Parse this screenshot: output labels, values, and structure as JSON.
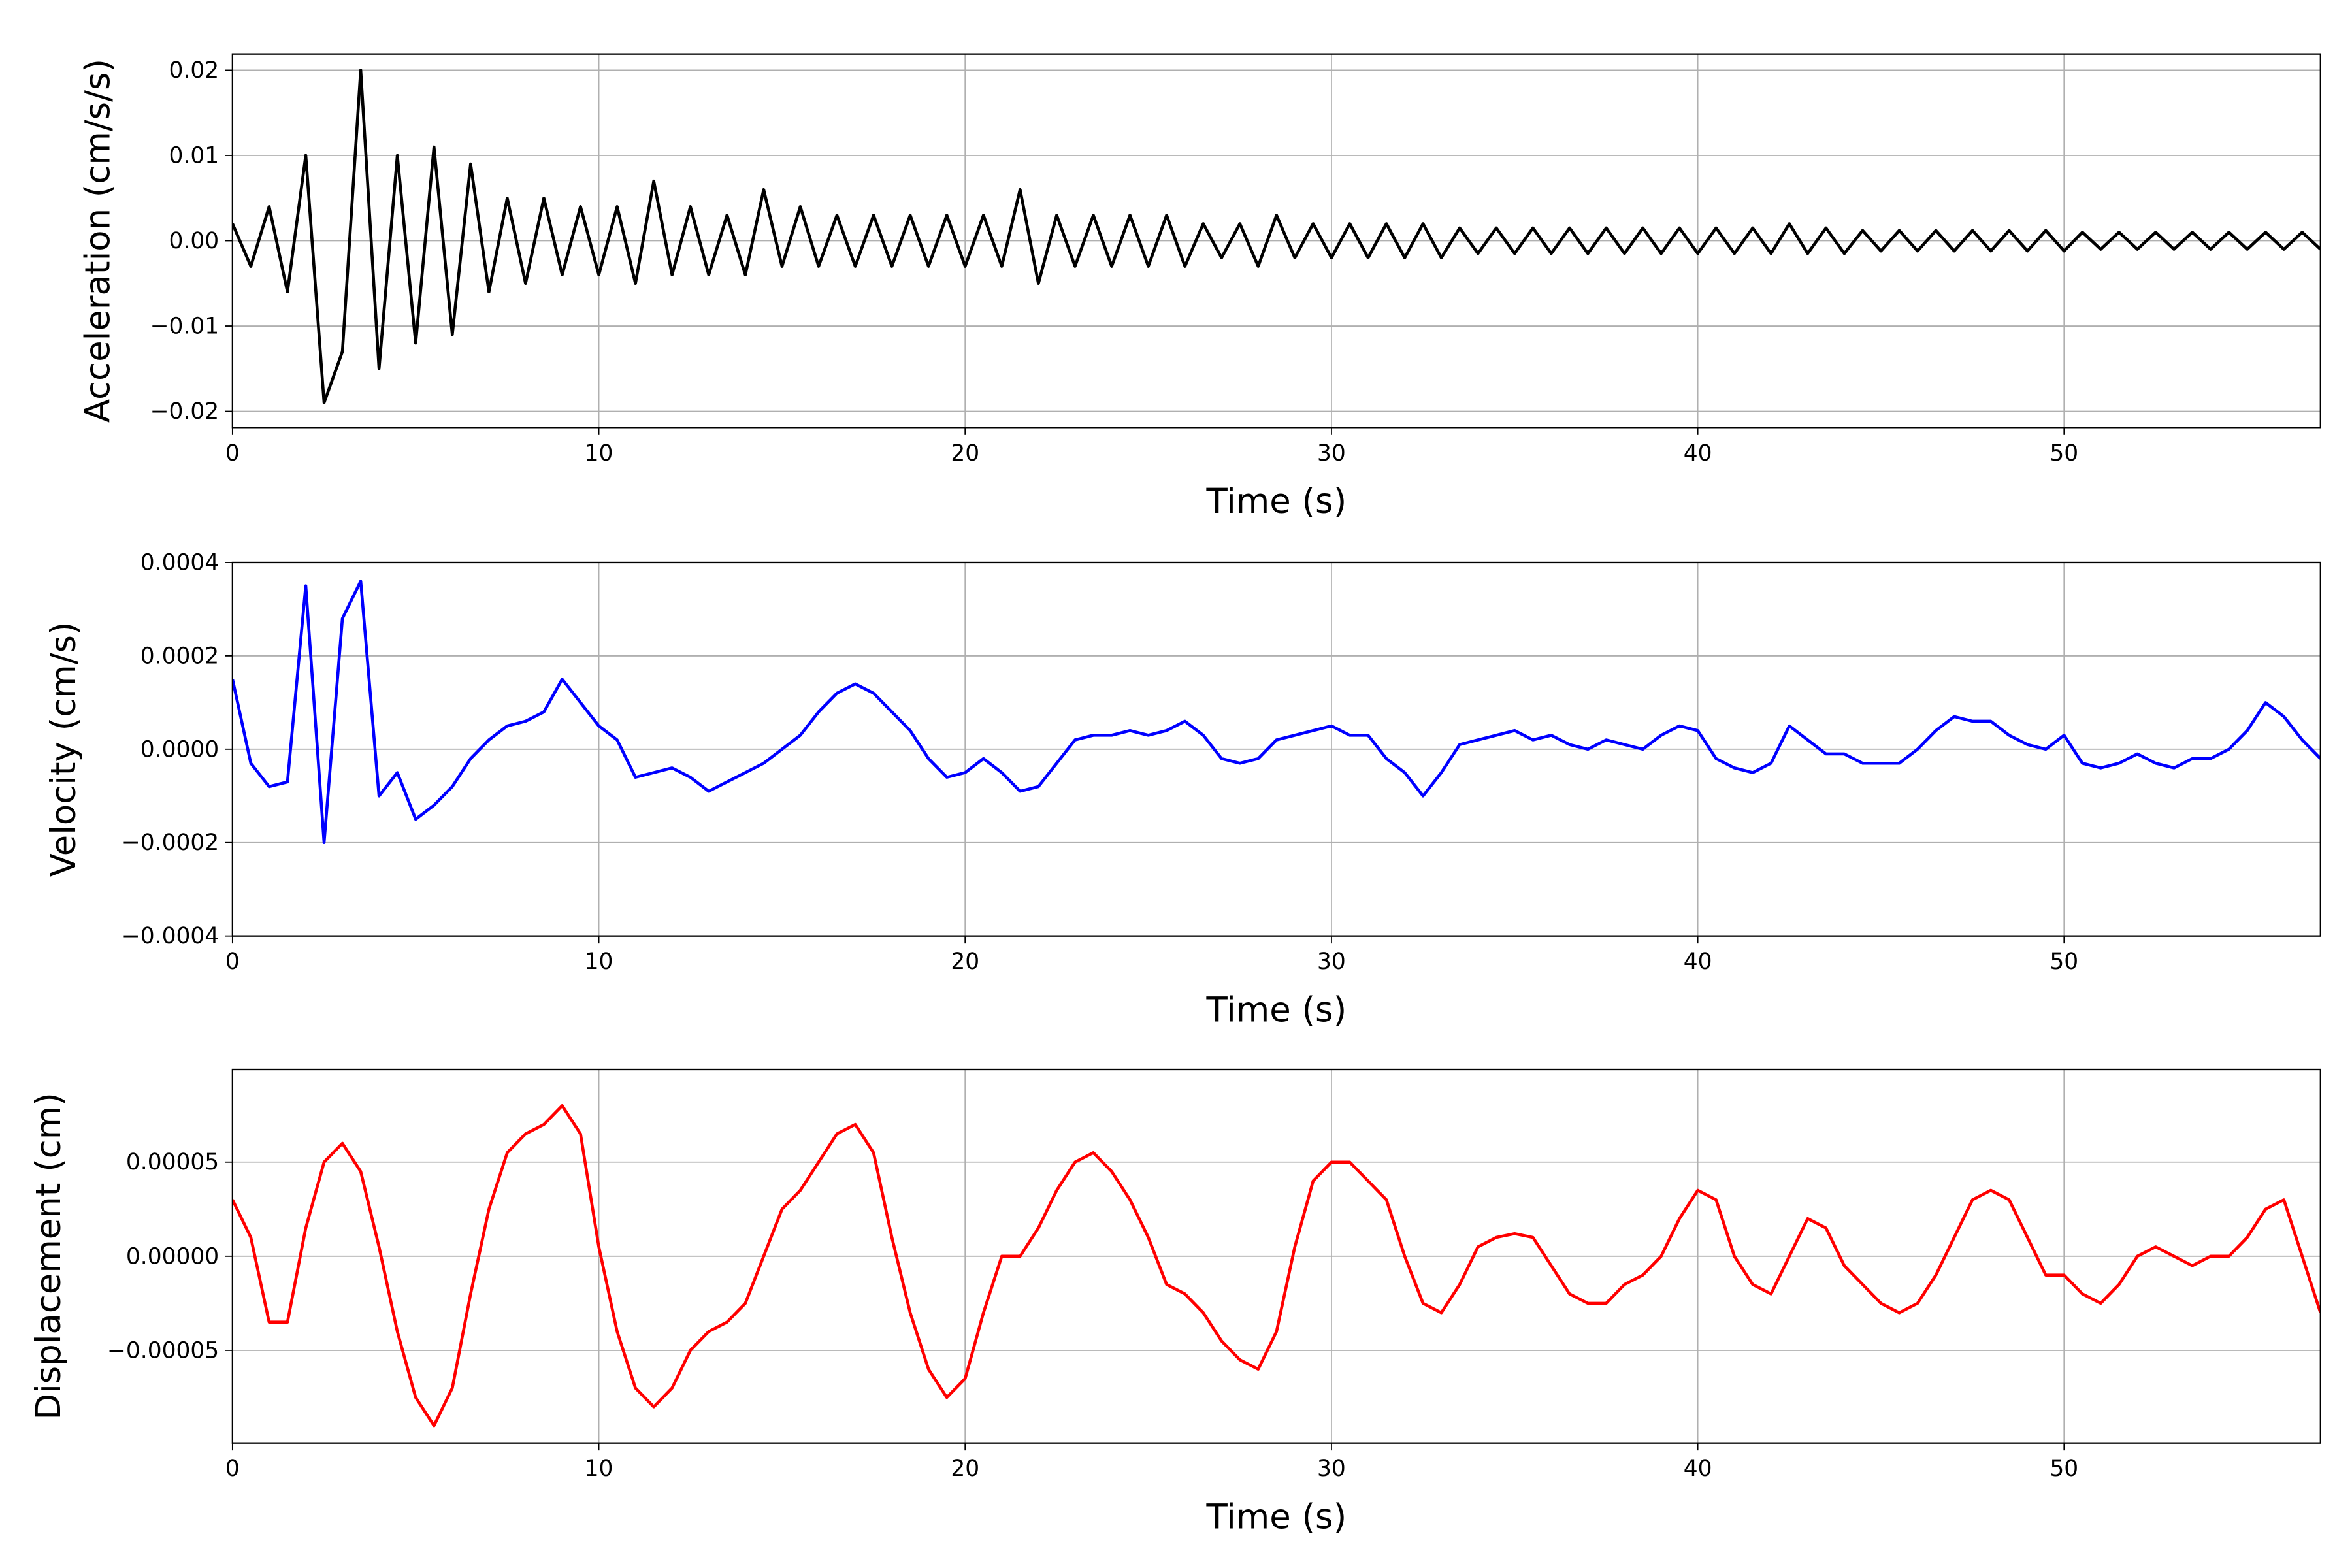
{
  "chart_data": [
    {
      "type": "line",
      "ylabel": "Acceleration (cm/s/s)",
      "xlabel": "Time (s)",
      "color": "#000000",
      "grid": true,
      "xlim": [
        0,
        57
      ],
      "xticks": [
        0,
        10,
        20,
        30,
        40,
        50
      ],
      "ylim": [
        -0.0219,
        0.0219
      ],
      "yticks": [
        {
          "value": -0.02,
          "label": "−0.02"
        },
        {
          "value": -0.01,
          "label": "−0.01"
        },
        {
          "value": 0,
          "label": "0.00"
        },
        {
          "value": 0.01,
          "label": "0.01"
        },
        {
          "value": 0.02,
          "label": "0.02"
        }
      ],
      "x": [
        0,
        0.5,
        1,
        1.5,
        2,
        2.5,
        3,
        3.5,
        4,
        4.5,
        5,
        5.5,
        6,
        6.5,
        7,
        7.5,
        8,
        8.5,
        9,
        9.5,
        10,
        10.5,
        11,
        11.5,
        12,
        12.5,
        13,
        13.5,
        14,
        14.5,
        15,
        15.5,
        16,
        16.5,
        17,
        17.5,
        18,
        18.5,
        19,
        19.5,
        20,
        20.5,
        21,
        21.5,
        22,
        22.5,
        23,
        23.5,
        24,
        24.5,
        25,
        25.5,
        26,
        26.5,
        27,
        27.5,
        28,
        28.5,
        29,
        29.5,
        30,
        30.5,
        31,
        31.5,
        32,
        32.5,
        33,
        33.5,
        34,
        34.5,
        35,
        35.5,
        36,
        36.5,
        37,
        37.5,
        38,
        38.5,
        39,
        39.5,
        40,
        40.5,
        41,
        41.5,
        42,
        42.5,
        43,
        43.5,
        44,
        44.5,
        45,
        45.5,
        46,
        46.5,
        47,
        47.5,
        48,
        48.5,
        49,
        49.5,
        50,
        50.5,
        51,
        51.5,
        52,
        52.5,
        53,
        53.5,
        54,
        54.5,
        55,
        55.5,
        56,
        56.5,
        57
      ],
      "values": [
        0.002,
        -0.003,
        0.004,
        -0.006,
        0.01,
        -0.019,
        -0.013,
        0.02,
        -0.015,
        0.01,
        -0.012,
        0.011,
        -0.011,
        0.009,
        -0.006,
        0.005,
        -0.005,
        0.005,
        -0.004,
        0.004,
        -0.004,
        0.004,
        -0.005,
        0.007,
        -0.004,
        0.004,
        -0.004,
        0.003,
        -0.004,
        0.006,
        -0.003,
        0.004,
        -0.003,
        0.003,
        -0.003,
        0.003,
        -0.003,
        0.003,
        -0.003,
        0.003,
        -0.003,
        0.003,
        -0.003,
        0.006,
        -0.005,
        0.003,
        -0.003,
        0.003,
        -0.003,
        0.003,
        -0.003,
        0.003,
        -0.003,
        0.002,
        -0.002,
        0.002,
        -0.003,
        0.003,
        -0.002,
        0.002,
        -0.002,
        0.002,
        -0.002,
        0.002,
        -0.002,
        0.002,
        -0.002,
        0.0015,
        -0.0015,
        0.0015,
        -0.0015,
        0.0015,
        -0.0015,
        0.0015,
        -0.0015,
        0.0015,
        -0.0015,
        0.0015,
        -0.0015,
        0.0015,
        -0.0015,
        0.0015,
        -0.0015,
        0.0015,
        -0.0015,
        0.002,
        -0.0015,
        0.0015,
        -0.0015,
        0.0012,
        -0.0012,
        0.0012,
        -0.0012,
        0.0012,
        -0.0012,
        0.0012,
        -0.0012,
        0.0012,
        -0.0012,
        0.0012,
        -0.0012,
        0.001,
        -0.001,
        0.001,
        -0.001,
        0.001,
        -0.001,
        0.001,
        -0.001,
        0.001,
        -0.001,
        0.001,
        -0.001,
        0.001,
        -0.001
      ]
    },
    {
      "type": "line",
      "ylabel": "Velocity (cm/s)",
      "xlabel": "Time (s)",
      "color": "#0000ff",
      "grid": true,
      "xlim": [
        0,
        57
      ],
      "xticks": [
        0,
        10,
        20,
        30,
        40,
        50
      ],
      "ylim": [
        -0.0004,
        0.0004
      ],
      "yticks": [
        {
          "value": -0.0004,
          "label": "−0.0004"
        },
        {
          "value": -0.0002,
          "label": "−0.0002"
        },
        {
          "value": 0,
          "label": "0.0000"
        },
        {
          "value": 0.0002,
          "label": "0.0002"
        },
        {
          "value": 0.0004,
          "label": "0.0004"
        }
      ],
      "x": [
        0,
        0.5,
        1,
        1.5,
        2,
        2.5,
        3,
        3.5,
        4,
        4.5,
        5,
        5.5,
        6,
        6.5,
        7,
        7.5,
        8,
        8.5,
        9,
        9.5,
        10,
        10.5,
        11,
        11.5,
        12,
        12.5,
        13,
        13.5,
        14,
        14.5,
        15,
        15.5,
        16,
        16.5,
        17,
        17.5,
        18,
        18.5,
        19,
        19.5,
        20,
        20.5,
        21,
        21.5,
        22,
        22.5,
        23,
        23.5,
        24,
        24.5,
        25,
        25.5,
        26,
        26.5,
        27,
        27.5,
        28,
        28.5,
        29,
        29.5,
        30,
        30.5,
        31,
        31.5,
        32,
        32.5,
        33,
        33.5,
        34,
        34.5,
        35,
        35.5,
        36,
        36.5,
        37,
        37.5,
        38,
        38.5,
        39,
        39.5,
        40,
        40.5,
        41,
        41.5,
        42,
        42.5,
        43,
        43.5,
        44,
        44.5,
        45,
        45.5,
        46,
        46.5,
        47,
        47.5,
        48,
        48.5,
        49,
        49.5,
        50,
        50.5,
        51,
        51.5,
        52,
        52.5,
        53,
        53.5,
        54,
        54.5,
        55,
        55.5,
        56,
        56.5,
        57
      ],
      "values": [
        0.00015,
        -3e-05,
        -8e-05,
        -7e-05,
        0.00035,
        -0.0002,
        0.00028,
        0.00036,
        -0.0001,
        -5e-05,
        -0.00015,
        -0.00012,
        -8e-05,
        -2e-05,
        2e-05,
        5e-05,
        6e-05,
        8e-05,
        0.00015,
        0.0001,
        5e-05,
        2e-05,
        -6e-05,
        -5e-05,
        -4e-05,
        -6e-05,
        -9e-05,
        -7e-05,
        -5e-05,
        -3e-05,
        0,
        3e-05,
        8e-05,
        0.00012,
        0.00014,
        0.00012,
        8e-05,
        4e-05,
        -2e-05,
        -6e-05,
        -5e-05,
        -2e-05,
        -5e-05,
        -9e-05,
        -8e-05,
        -3e-05,
        2e-05,
        3e-05,
        3e-05,
        4e-05,
        3e-05,
        4e-05,
        6e-05,
        3e-05,
        -2e-05,
        -3e-05,
        -2e-05,
        2e-05,
        3e-05,
        4e-05,
        5e-05,
        3e-05,
        3e-05,
        -2e-05,
        -5e-05,
        -0.0001,
        -5e-05,
        1e-05,
        2e-05,
        3e-05,
        4e-05,
        2e-05,
        3e-05,
        1e-05,
        0,
        2e-05,
        1e-05,
        0,
        3e-05,
        5e-05,
        4e-05,
        -2e-05,
        -4e-05,
        -5e-05,
        -3e-05,
        5e-05,
        2e-05,
        -1e-05,
        -1e-05,
        -3e-05,
        -3e-05,
        -3e-05,
        0,
        4e-05,
        7e-05,
        6e-05,
        6e-05,
        3e-05,
        1e-05,
        0,
        3e-05,
        -3e-05,
        -4e-05,
        -3e-05,
        -1e-05,
        -3e-05,
        -4e-05,
        -2e-05,
        -2e-05,
        0,
        4e-05,
        0.0001,
        7e-05,
        2e-05,
        -2e-05
      ]
    },
    {
      "type": "line",
      "ylabel": "Displacement (cm)",
      "xlabel": "Time (s)",
      "color": "#ff0000",
      "grid": true,
      "xlim": [
        0,
        57
      ],
      "xticks": [
        0,
        10,
        20,
        30,
        40,
        50
      ],
      "ylim": [
        -9.92e-05,
        9.92e-05
      ],
      "yticks": [
        {
          "value": -5e-05,
          "label": "−0.00005"
        },
        {
          "value": 0,
          "label": "0.00000"
        },
        {
          "value": 5e-05,
          "label": "0.00005"
        }
      ],
      "x": [
        0,
        0.5,
        1,
        1.5,
        2,
        2.5,
        3,
        3.5,
        4,
        4.5,
        5,
        5.5,
        6,
        6.5,
        7,
        7.5,
        8,
        8.5,
        9,
        9.5,
        10,
        10.5,
        11,
        11.5,
        12,
        12.5,
        13,
        13.5,
        14,
        14.5,
        15,
        15.5,
        16,
        16.5,
        17,
        17.5,
        18,
        18.5,
        19,
        19.5,
        20,
        20.5,
        21,
        21.5,
        22,
        22.5,
        23,
        23.5,
        24,
        24.5,
        25,
        25.5,
        26,
        26.5,
        27,
        27.5,
        28,
        28.5,
        29,
        29.5,
        30,
        30.5,
        31,
        31.5,
        32,
        32.5,
        33,
        33.5,
        34,
        34.5,
        35,
        35.5,
        36,
        36.5,
        37,
        37.5,
        38,
        38.5,
        39,
        39.5,
        40,
        40.5,
        41,
        41.5,
        42,
        42.5,
        43,
        43.5,
        44,
        44.5,
        45,
        45.5,
        46,
        46.5,
        47,
        47.5,
        48,
        48.5,
        49,
        49.5,
        50,
        50.5,
        51,
        51.5,
        52,
        52.5,
        53,
        53.5,
        54,
        54.5,
        55,
        55.5,
        56,
        56.5,
        57
      ],
      "values": [
        3e-05,
        1e-05,
        -3.5e-05,
        -3.5e-05,
        1.5e-05,
        5e-05,
        6e-05,
        4.5e-05,
        5e-06,
        -4e-05,
        -7.5e-05,
        -9e-05,
        -7e-05,
        -2e-05,
        2.5e-05,
        5.5e-05,
        6.5e-05,
        7e-05,
        8e-05,
        6.5e-05,
        5e-06,
        -4e-05,
        -7e-05,
        -8e-05,
        -7e-05,
        -5e-05,
        -4e-05,
        -3.5e-05,
        -2.5e-05,
        0,
        2.5e-05,
        3.5e-05,
        5e-05,
        6.5e-05,
        7e-05,
        5.5e-05,
        1e-05,
        -3e-05,
        -6e-05,
        -7.5e-05,
        -6.5e-05,
        -3e-05,
        0,
        0,
        1.5e-05,
        3.5e-05,
        5e-05,
        5.5e-05,
        4.5e-05,
        3e-05,
        1e-05,
        -1.5e-05,
        -2e-05,
        -3e-05,
        -4.5e-05,
        -5.5e-05,
        -6e-05,
        -4e-05,
        5e-06,
        4e-05,
        5e-05,
        5e-05,
        4e-05,
        3e-05,
        0,
        -2.5e-05,
        -3e-05,
        -1.5e-05,
        5e-06,
        1e-05,
        1.2e-05,
        1e-05,
        -5e-06,
        -2e-05,
        -2.5e-05,
        -2.5e-05,
        -1.5e-05,
        -1e-05,
        0,
        2e-05,
        3.5e-05,
        3e-05,
        0,
        -1.5e-05,
        -2e-05,
        0,
        2e-05,
        1.5e-05,
        -5e-06,
        -1.5e-05,
        -2.5e-05,
        -3e-05,
        -2.5e-05,
        -1e-05,
        1e-05,
        3e-05,
        3.5e-05,
        3e-05,
        1e-05,
        -1e-05,
        -1e-05,
        -2e-05,
        -2.5e-05,
        -1.5e-05,
        0,
        5e-06,
        0,
        -5e-06,
        0,
        0,
        1e-05,
        2.5e-05,
        3e-05,
        0,
        -3e-05
      ]
    }
  ]
}
